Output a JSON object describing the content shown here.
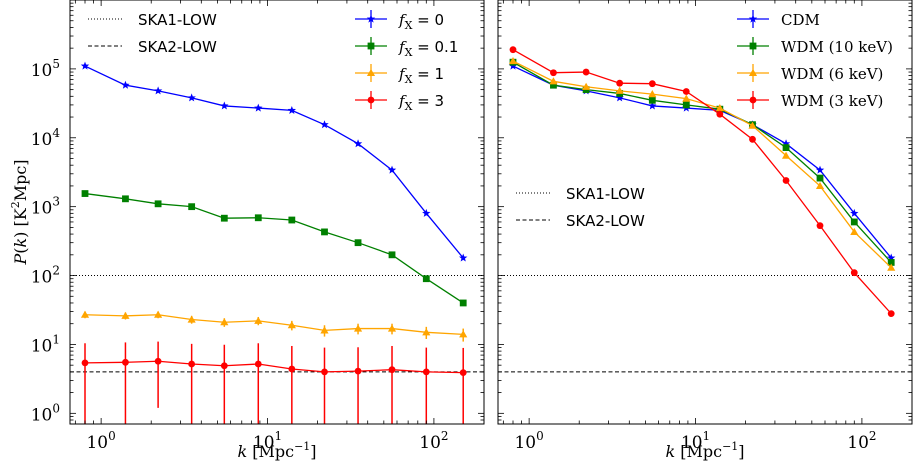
{
  "chart_data": [
    {
      "type": "line",
      "panel": "left",
      "xscale": "log",
      "yscale": "log",
      "xlim": [
        0.65,
        200
      ],
      "ylim": [
        0.7,
        1000000
      ],
      "xlabel_italic": "k",
      "xlabel_unit": "[Mpc",
      "xlabel_sup": "−1",
      "xlabel_close": "]",
      "ylabel_italic": "P",
      "ylabel_mid": "(",
      "ylabel_k": "k",
      "ylabel_rest": ") [K",
      "ylabel_sup": "2",
      "ylabel_end": "Mpc]",
      "xticks": [
        {
          "v": 1,
          "base": "10",
          "exp": "0"
        },
        {
          "v": 10,
          "base": "10",
          "exp": "1"
        },
        {
          "v": 100,
          "base": "10",
          "exp": "2"
        }
      ],
      "yticks": [
        {
          "v": 1,
          "base": "10",
          "exp": "0"
        },
        {
          "v": 10,
          "base": "10",
          "exp": "1"
        },
        {
          "v": 100,
          "base": "10",
          "exp": "2"
        },
        {
          "v": 1000,
          "base": "10",
          "exp": "3"
        },
        {
          "v": 10000,
          "base": "10",
          "exp": "4"
        },
        {
          "v": 100000,
          "base": "10",
          "exp": "5"
        }
      ],
      "hlines": [
        {
          "name": "SKA1-LOW",
          "y": 100,
          "style": "dotted"
        },
        {
          "name": "SKA2-LOW",
          "y": 4,
          "style": "dashed"
        }
      ],
      "line_legend": {
        "position": "top-left",
        "entries": [
          "SKA1-LOW",
          "SKA2-LOW"
        ]
      },
      "series_legend": {
        "position": "top-right"
      },
      "x": [
        0.8,
        1.4,
        2.2,
        3.5,
        5.5,
        8.8,
        14,
        22,
        35,
        56,
        90,
        150
      ],
      "series": [
        {
          "label_var": "f",
          "label_sub": "X",
          "label_val": " = 0",
          "color": "#0000ff",
          "marker": "star",
          "values": [
            110000,
            58000,
            48000,
            38000,
            29000,
            27000,
            25000,
            15500,
            8200,
            3400,
            800,
            180
          ]
        },
        {
          "label_var": "f",
          "label_sub": "X",
          "label_val": " = 0.1",
          "color": "#008000",
          "marker": "square",
          "values": [
            1550,
            1300,
            1100,
            1000,
            680,
            690,
            640,
            430,
            300,
            200,
            90,
            40
          ]
        },
        {
          "label_var": "f",
          "label_sub": "X",
          "label_val": " = 1",
          "color": "#ffa500",
          "marker": "triangle",
          "values": [
            27,
            26,
            27,
            23,
            21,
            22,
            19,
            16,
            17,
            17,
            15,
            14
          ],
          "errors": [
            [
              3,
              3
            ],
            [
              3,
              3
            ],
            [
              3,
              3
            ],
            [
              3,
              3
            ],
            [
              3,
              3
            ],
            [
              3,
              3
            ],
            [
              3,
              3
            ],
            [
              3,
              3
            ],
            [
              3,
              3
            ],
            [
              3,
              3
            ],
            [
              3,
              3
            ],
            [
              3,
              3
            ]
          ]
        },
        {
          "label_var": "f",
          "label_sub": "X",
          "label_val": " = 3",
          "color": "#ff0000",
          "marker": "circle",
          "values": [
            5.4,
            5.5,
            5.7,
            5.2,
            4.9,
            5.2,
            4.4,
            4.0,
            4.1,
            4.3,
            4.0,
            3.9
          ],
          "errors": [
            [
              4.7,
              5
            ],
            [
              4.8,
              5.2
            ],
            [
              4.5,
              5.3
            ],
            [
              4.6,
              5
            ],
            [
              4.4,
              5
            ],
            [
              4.7,
              5.2
            ],
            [
              4,
              5.1
            ],
            [
              3.6,
              5
            ],
            [
              3.7,
              5
            ],
            [
              3.9,
              5.2
            ],
            [
              3.6,
              5
            ],
            [
              3.5,
              5
            ]
          ]
        }
      ]
    },
    {
      "type": "line",
      "panel": "right",
      "xscale": "log",
      "yscale": "log",
      "xlim": [
        0.65,
        200
      ],
      "ylim": [
        0.7,
        1000000
      ],
      "xlabel_italic": "k",
      "xlabel_unit": "[Mpc",
      "xlabel_sup": "−1",
      "xlabel_close": "]",
      "xticks": [
        {
          "v": 1,
          "base": "10",
          "exp": "0"
        },
        {
          "v": 10,
          "base": "10",
          "exp": "1"
        },
        {
          "v": 100,
          "base": "10",
          "exp": "2"
        }
      ],
      "hlines": [
        {
          "name": "SKA1-LOW",
          "y": 100,
          "style": "dotted"
        },
        {
          "name": "SKA2-LOW",
          "y": 4,
          "style": "dashed"
        }
      ],
      "line_legend": {
        "position": "center-left",
        "entries": [
          "SKA1-LOW",
          "SKA2-LOW"
        ]
      },
      "series_legend": {
        "position": "top-right"
      },
      "x": [
        0.8,
        1.4,
        2.2,
        3.5,
        5.5,
        8.8,
        14,
        22,
        35,
        56,
        90,
        150
      ],
      "series": [
        {
          "name": "CDM",
          "color": "#0000ff",
          "marker": "star",
          "values": [
            110000,
            58000,
            48000,
            38000,
            29000,
            27000,
            25000,
            15500,
            8200,
            3400,
            800,
            180
          ]
        },
        {
          "name": "WDM (10 keV)",
          "color": "#008000",
          "marker": "square",
          "values": [
            125000,
            58000,
            50000,
            44000,
            35000,
            30000,
            26000,
            15500,
            7200,
            2600,
            600,
            155
          ]
        },
        {
          "name": "WDM (6 keV)",
          "color": "#ffa500",
          "marker": "triangle",
          "values": [
            130000,
            66000,
            55000,
            48000,
            43000,
            37000,
            27000,
            15000,
            5500,
            2000,
            430,
            130
          ]
        },
        {
          "name": "WDM (3 keV)",
          "color": "#ff0000",
          "marker": "circle",
          "values": [
            190000,
            88000,
            90000,
            62000,
            61000,
            47000,
            22000,
            9500,
            2400,
            530,
            110,
            28
          ]
        }
      ]
    }
  ]
}
